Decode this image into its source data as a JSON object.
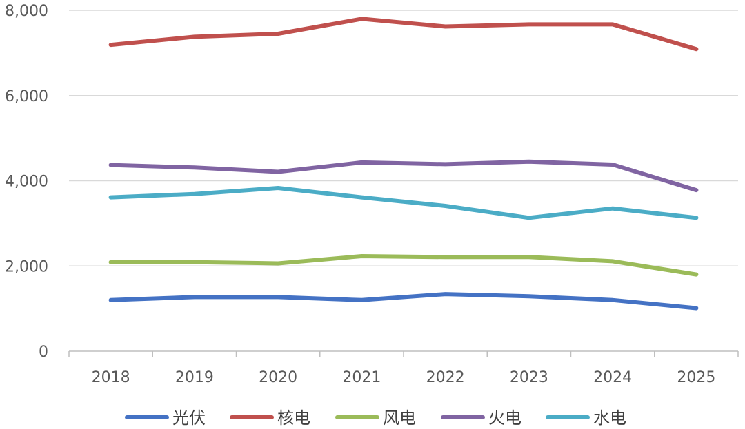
{
  "chart_data": {
    "type": "line",
    "title": "",
    "xlabel": "",
    "ylabel": "",
    "x": [
      "2018",
      "2019",
      "2020",
      "2021",
      "2022",
      "2023",
      "2024",
      "2025"
    ],
    "ylim": [
      0,
      8000
    ],
    "yticks": [
      0,
      2000,
      4000,
      6000,
      8000
    ],
    "ytick_labels": [
      "0",
      "2,000",
      "4,000",
      "6,000",
      "8,000"
    ],
    "grid": "horizontal",
    "legend_position": "bottom",
    "series": [
      {
        "name": "光伏",
        "color": "#4472C4",
        "values": [
          1200,
          1270,
          1270,
          1200,
          1340,
          1290,
          1200,
          1010
        ]
      },
      {
        "name": "核电",
        "color": "#C0504D",
        "values": [
          7190,
          7380,
          7450,
          7800,
          7620,
          7670,
          7670,
          7090
        ]
      },
      {
        "name": "风电",
        "color": "#9BBB59",
        "values": [
          2090,
          2090,
          2060,
          2230,
          2210,
          2210,
          2110,
          1800
        ]
      },
      {
        "name": "火电",
        "color": "#8064A2",
        "values": [
          4370,
          4310,
          4210,
          4430,
          4390,
          4450,
          4380,
          3780
        ]
      },
      {
        "name": "水电",
        "color": "#4BACC6",
        "values": [
          3610,
          3690,
          3830,
          3610,
          3410,
          3130,
          3350,
          3130
        ]
      }
    ]
  }
}
